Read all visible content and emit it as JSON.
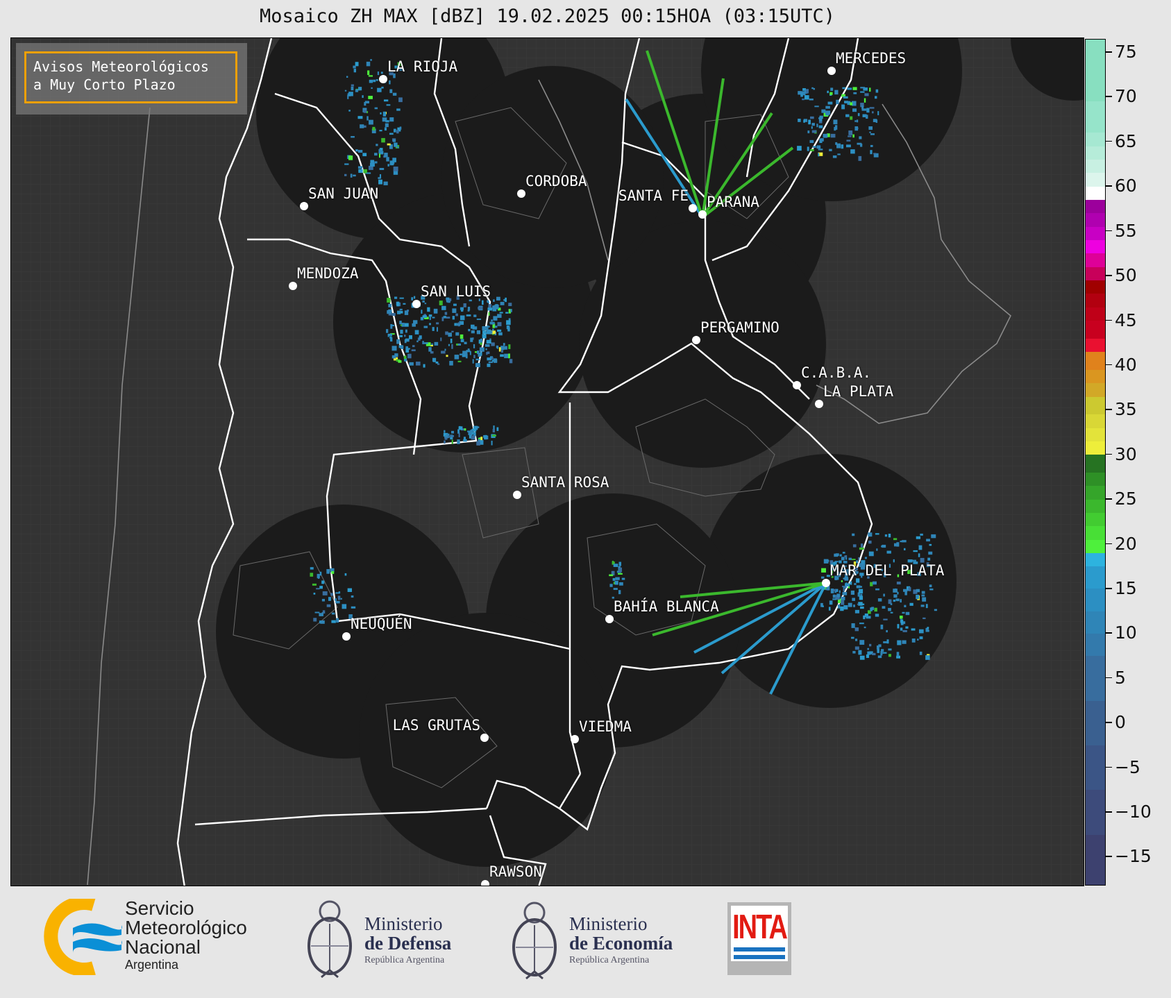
{
  "title": "Mosaico ZH MAX [dBZ] 19.02.2025 00:15HOA (03:15UTC)",
  "legend_box": {
    "line1": "Avisos Meteorológicos",
    "line2": "a Muy Corto Plazo",
    "border_color": "#f0a000"
  },
  "cities": [
    {
      "name": "LA RIOJA",
      "label_side": "right"
    },
    {
      "name": "SAN JUAN",
      "label_side": "right"
    },
    {
      "name": "CORDOBA",
      "label_side": "right"
    },
    {
      "name": "SANTA FE",
      "label_side": "left"
    },
    {
      "name": "PARANA",
      "label_side": "right"
    },
    {
      "name": "MERCEDES",
      "label_side": "right"
    },
    {
      "name": "MENDOZA",
      "label_side": "right"
    },
    {
      "name": "SAN LUIS",
      "label_side": "right"
    },
    {
      "name": "PERGAMINO",
      "label_side": "right"
    },
    {
      "name": "C.A.B.A.",
      "label_side": "right"
    },
    {
      "name": "LA PLATA",
      "label_side": "right"
    },
    {
      "name": "SANTA ROSA",
      "label_side": "right"
    },
    {
      "name": "MAR DEL PLATA",
      "label_side": "right"
    },
    {
      "name": "BAHÍA BLANCA",
      "label_side": "right"
    },
    {
      "name": "NEUQUÉN",
      "label_side": "right"
    },
    {
      "name": "LAS GRUTAS",
      "label_side": "left"
    },
    {
      "name": "VIEDMA",
      "label_side": "right"
    },
    {
      "name": "RAWSON",
      "label_side": "right"
    }
  ],
  "colorbar": {
    "unit": "dBZ",
    "range": [
      -18.3,
      76.4
    ],
    "ticks": [
      "75",
      "70",
      "65",
      "60",
      "55",
      "50",
      "45",
      "40",
      "35",
      "30",
      "25",
      "20",
      "15",
      "10",
      "5",
      "0",
      "−5",
      "−10",
      "−15"
    ],
    "tick_values": [
      75,
      70,
      65,
      60,
      55,
      50,
      45,
      40,
      35,
      30,
      25,
      20,
      15,
      10,
      5,
      0,
      -5,
      -10,
      -15
    ],
    "bands": [
      [
        -18.3,
        -12.5,
        "#3d416f"
      ],
      [
        -12.5,
        -7.5,
        "#3d4b7b"
      ],
      [
        -7.5,
        -2.5,
        "#3b5586"
      ],
      [
        -2.5,
        2.5,
        "#3a6090"
      ],
      [
        2.5,
        7.5,
        "#386d9e"
      ],
      [
        7.5,
        10,
        "#337aac"
      ],
      [
        10,
        12.5,
        "#2f85b7"
      ],
      [
        12.5,
        15,
        "#2c8fc2"
      ],
      [
        15,
        17.5,
        "#2b9bcd"
      ],
      [
        17.5,
        19,
        "#2db3df"
      ],
      [
        19,
        20.5,
        "#4ef03c"
      ],
      [
        20.5,
        22,
        "#48df36"
      ],
      [
        22,
        23.5,
        "#42cc31"
      ],
      [
        23.5,
        25,
        "#3bb82d"
      ],
      [
        25,
        26.5,
        "#35a52a"
      ],
      [
        26.5,
        28,
        "#2e9026"
      ],
      [
        28,
        30,
        "#267322"
      ],
      [
        30,
        31.5,
        "#eeee3a"
      ],
      [
        31.5,
        33,
        "#e3e33a"
      ],
      [
        33,
        34.5,
        "#d9d736"
      ],
      [
        34.5,
        36.5,
        "#ccc930"
      ],
      [
        36.5,
        38,
        "#d2a827"
      ],
      [
        38,
        39.5,
        "#da9620"
      ],
      [
        39.5,
        41.5,
        "#e0821c"
      ],
      [
        41.5,
        43,
        "#ea1030"
      ],
      [
        43,
        45,
        "#c8001f"
      ],
      [
        45,
        46.5,
        "#bf0018"
      ],
      [
        46.5,
        48,
        "#b20010"
      ],
      [
        48,
        49.5,
        "#a00000"
      ],
      [
        49.5,
        51,
        "#c8005a"
      ],
      [
        51,
        52.5,
        "#de0098"
      ],
      [
        52.5,
        54,
        "#ee00e0"
      ],
      [
        54,
        55.5,
        "#c800c4"
      ],
      [
        55.5,
        57,
        "#b000b0"
      ],
      [
        57,
        58.5,
        "#9c009c"
      ],
      [
        58.5,
        60,
        "#ffffff"
      ],
      [
        60,
        61.5,
        "#dcf5ec"
      ],
      [
        61.5,
        63,
        "#c8f0e2"
      ],
      [
        63,
        64.5,
        "#b6ecd9"
      ],
      [
        64.5,
        66,
        "#a6e8d2"
      ],
      [
        66,
        69.5,
        "#96e4ca"
      ],
      [
        69.5,
        76.4,
        "#88dfc0"
      ]
    ]
  },
  "footer": {
    "smn": {
      "line1": "Servicio",
      "line2": "Meteorológico",
      "line3": "Nacional",
      "line4": "Argentina"
    },
    "defensa": {
      "line1": "Ministerio",
      "line2": "de Defensa",
      "line3": "República Argentina"
    },
    "economia": {
      "line1": "Ministerio",
      "line2": "de Economía",
      "line3": "República Argentina"
    },
    "inta": {
      "text": "INTA"
    }
  }
}
